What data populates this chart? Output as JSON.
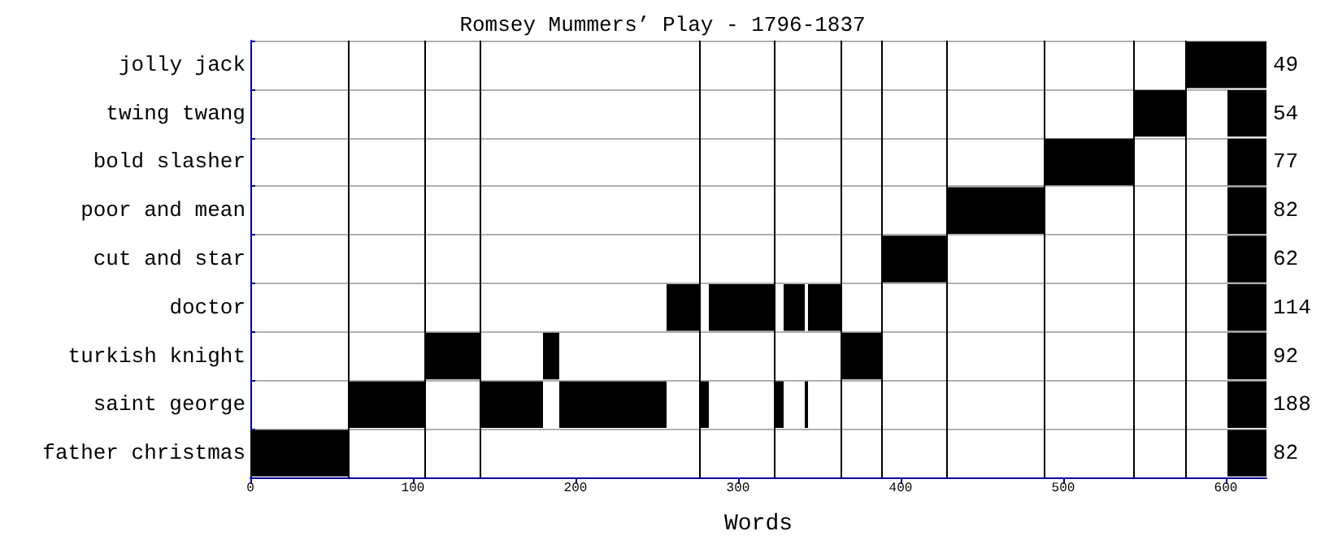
{
  "chart_data": {
    "type": "bar",
    "orientation": "horizontal",
    "title": "Romsey Mummers’ Play - 1796-1837",
    "xlabel": "Words",
    "categories": [
      "jolly jack",
      "twing twang",
      "bold slasher",
      "poor and mean",
      "cut and star",
      "doctor",
      "turkish knight",
      "saint george",
      "father christmas"
    ],
    "series": [
      {
        "color": "#000000",
        "base": [
          575,
          543,
          488,
          428,
          388,
          256,
          107,
          60,
          0
        ],
        "values": [
          26,
          32,
          55,
          60,
          40,
          20,
          34,
          47,
          60
        ]
      },
      {
        "color": "#000000",
        "base": [
          null,
          null,
          null,
          null,
          null,
          282,
          180,
          141,
          null
        ],
        "values": [
          null,
          null,
          null,
          null,
          null,
          40,
          10,
          39,
          null
        ]
      },
      {
        "color": "#000000",
        "base": [
          null,
          null,
          null,
          null,
          null,
          328,
          363,
          190,
          null
        ],
        "values": [
          null,
          null,
          null,
          null,
          null,
          13,
          25,
          66,
          null
        ]
      },
      {
        "color": "#000000",
        "base": [
          null,
          null,
          null,
          null,
          null,
          343,
          null,
          276,
          null
        ],
        "values": [
          null,
          null,
          null,
          null,
          null,
          20,
          null,
          6,
          null
        ]
      },
      {
        "color": "#000000",
        "base": [
          null,
          null,
          null,
          null,
          null,
          null,
          null,
          322,
          null
        ],
        "values": [
          null,
          null,
          null,
          null,
          null,
          null,
          null,
          6,
          null
        ]
      },
      {
        "color": "#000000",
        "base": [
          null,
          null,
          null,
          null,
          null,
          null,
          null,
          341,
          null
        ],
        "values": [
          null,
          null,
          null,
          null,
          null,
          null,
          null,
          2,
          null
        ]
      },
      {
        "color": "#000000",
        "base": [
          601,
          601,
          601,
          601,
          601,
          601,
          601,
          601,
          601
        ],
        "values": [
          24,
          24,
          24,
          24,
          24,
          24,
          24,
          24,
          24
        ]
      }
    ],
    "annotations": [
      "49",
      "54",
      "77",
      "82",
      "62",
      "114",
      "92",
      "188",
      "82"
    ],
    "xlim": [
      0,
      625
    ],
    "xticks": [
      0,
      100,
      200,
      300,
      400,
      500,
      600
    ],
    "grid": "y",
    "ref_lines": [
      {
        "axis": "x",
        "value": 60,
        "color": "#000000"
      },
      {
        "axis": "x",
        "value": 107,
        "color": "#000000"
      },
      {
        "axis": "x",
        "value": 141,
        "color": "#000000"
      },
      {
        "axis": "x",
        "value": 276,
        "color": "#000000"
      },
      {
        "axis": "x",
        "value": 322,
        "color": "#000000"
      },
      {
        "axis": "x",
        "value": 363,
        "color": "#000000"
      },
      {
        "axis": "x",
        "value": 388,
        "color": "#000000"
      },
      {
        "axis": "x",
        "value": 428,
        "color": "#000000"
      },
      {
        "axis": "x",
        "value": 488,
        "color": "#000000"
      },
      {
        "axis": "x",
        "value": 543,
        "color": "#000000"
      },
      {
        "axis": "x",
        "value": 575,
        "color": "#000000"
      }
    ]
  }
}
